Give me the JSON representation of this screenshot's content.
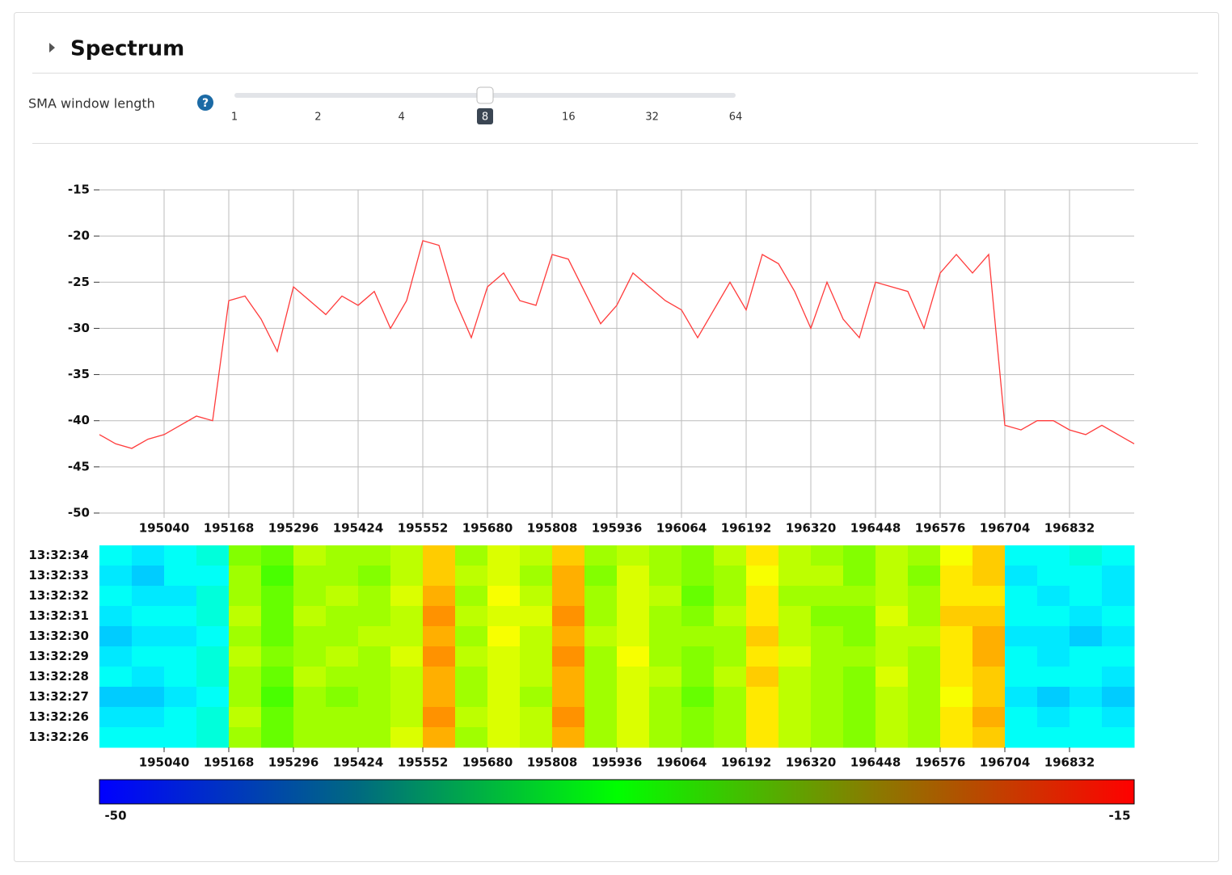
{
  "header": {
    "title": "Spectrum"
  },
  "controls": {
    "sma": {
      "label": "SMA window length",
      "ticks": [
        1,
        2,
        4,
        8,
        16,
        32,
        64
      ],
      "value": 8
    }
  },
  "chart_data": [
    {
      "type": "line",
      "color": "#ff3b3b",
      "grid": true,
      "x": [
        194912,
        194944,
        194976,
        195008,
        195040,
        195072,
        195104,
        195136,
        195168,
        195200,
        195232,
        195264,
        195296,
        195328,
        195360,
        195392,
        195424,
        195456,
        195488,
        195520,
        195552,
        195584,
        195616,
        195648,
        195680,
        195712,
        195744,
        195776,
        195808,
        195840,
        195872,
        195904,
        195936,
        195968,
        196000,
        196032,
        196064,
        196096,
        196128,
        196160,
        196192,
        196224,
        196256,
        196288,
        196320,
        196352,
        196384,
        196416,
        196448,
        196480,
        196512,
        196544,
        196576,
        196608,
        196640,
        196672,
        196704,
        196736,
        196768,
        196800,
        196832,
        196864,
        196896,
        196928,
        196960
      ],
      "values": [
        -41.5,
        -42.5,
        -43,
        -42,
        -41.5,
        -40.5,
        -39.5,
        -40,
        -27,
        -26.5,
        -29,
        -32.5,
        -25.5,
        -27,
        -28.5,
        -26.5,
        -27.5,
        -26,
        -30,
        -27,
        -20.5,
        -21,
        -27,
        -31,
        -25.5,
        -24,
        -27,
        -27.5,
        -22,
        -22.5,
        -26,
        -29.5,
        -27.5,
        -24,
        -25.5,
        -27,
        -28,
        -31,
        -28,
        -25,
        -28,
        -22,
        -23,
        -26,
        -30,
        -25,
        -29,
        -31,
        -25,
        -25.5,
        -26,
        -30,
        -24,
        -22,
        -24,
        -22,
        -40.5,
        -41,
        -40,
        -40,
        -41,
        -41.5,
        -40.5,
        -41.5,
        -42.5
      ],
      "xlim": [
        194912,
        196960
      ],
      "xticks": [
        195040,
        195168,
        195296,
        195424,
        195552,
        195680,
        195808,
        195936,
        196064,
        196192,
        196320,
        196448,
        196576,
        196704,
        196832
      ],
      "ylim": [
        -50,
        -15
      ],
      "yticks": [
        -50,
        -45,
        -40,
        -35,
        -30,
        -25,
        -20,
        -15
      ]
    },
    {
      "type": "heatmap",
      "categories": [
        "13:32:34",
        "13:32:33",
        "13:32:32",
        "13:32:31",
        "13:32:30",
        "13:32:29",
        "13:32:28",
        "13:32:27",
        "13:32:26",
        "13:32:26"
      ],
      "x": [
        194944,
        195008,
        195072,
        195136,
        195200,
        195264,
        195328,
        195392,
        195456,
        195520,
        195584,
        195648,
        195712,
        195776,
        195840,
        195904,
        195968,
        196032,
        196096,
        196160,
        196224,
        196288,
        196352,
        196416,
        196480,
        196544,
        196608,
        196672,
        196736,
        196800,
        196864,
        196928
      ],
      "values": [
        [
          -41,
          -42,
          -41,
          -40,
          -28,
          -29,
          -26,
          -27,
          -27,
          -26,
          -22,
          -27,
          -25,
          -26,
          -22,
          -27,
          -26,
          -27,
          -28,
          -26,
          -23,
          -26,
          -27,
          -28,
          -26,
          -27,
          -24,
          -22,
          -41,
          -41,
          -40,
          -41
        ],
        [
          -42,
          -43,
          -41,
          -41,
          -27,
          -30,
          -27,
          -27,
          -28,
          -26,
          -22,
          -26,
          -25,
          -27,
          -21,
          -28,
          -25,
          -27,
          -28,
          -27,
          -24,
          -26,
          -26,
          -28,
          -26,
          -28,
          -23,
          -22,
          -42,
          -41,
          -41,
          -42
        ],
        [
          -41,
          -42,
          -42,
          -40,
          -27,
          -29,
          -27,
          -26,
          -27,
          -25,
          -21,
          -27,
          -24,
          -26,
          -21,
          -27,
          -25,
          -26,
          -29,
          -27,
          -23,
          -27,
          -27,
          -27,
          -26,
          -27,
          -23,
          -23,
          -41,
          -42,
          -41,
          -42
        ],
        [
          -42,
          -41,
          -41,
          -40,
          -26,
          -29,
          -26,
          -27,
          -27,
          -26,
          -20,
          -26,
          -25,
          -25,
          -20,
          -27,
          -25,
          -27,
          -28,
          -26,
          -23,
          -26,
          -28,
          -28,
          -25,
          -27,
          -22,
          -22,
          -41,
          -41,
          -42,
          -41
        ],
        [
          -43,
          -42,
          -42,
          -41,
          -27,
          -29,
          -27,
          -27,
          -26,
          -26,
          -21,
          -27,
          -24,
          -26,
          -21,
          -26,
          -25,
          -27,
          -27,
          -27,
          -22,
          -26,
          -27,
          -28,
          -26,
          -26,
          -23,
          -21,
          -42,
          -42,
          -43,
          -42
        ],
        [
          -42,
          -41,
          -41,
          -40,
          -26,
          -28,
          -27,
          -26,
          -27,
          -25,
          -20,
          -26,
          -25,
          -26,
          -20,
          -27,
          -24,
          -27,
          -28,
          -27,
          -23,
          -25,
          -27,
          -27,
          -26,
          -27,
          -23,
          -21,
          -41,
          -42,
          -41,
          -41
        ],
        [
          -41,
          -42,
          -41,
          -40,
          -27,
          -29,
          -26,
          -27,
          -27,
          -26,
          -21,
          -27,
          -25,
          -26,
          -21,
          -27,
          -25,
          -26,
          -28,
          -26,
          -22,
          -26,
          -27,
          -28,
          -25,
          -27,
          -23,
          -22,
          -41,
          -41,
          -41,
          -42
        ],
        [
          -43,
          -43,
          -42,
          -41,
          -27,
          -30,
          -27,
          -28,
          -27,
          -26,
          -21,
          -27,
          -25,
          -27,
          -21,
          -27,
          -25,
          -27,
          -29,
          -27,
          -23,
          -26,
          -27,
          -28,
          -26,
          -27,
          -24,
          -22,
          -42,
          -43,
          -42,
          -43
        ],
        [
          -42,
          -42,
          -41,
          -40,
          -26,
          -29,
          -27,
          -27,
          -27,
          -26,
          -20,
          -26,
          -25,
          -26,
          -20,
          -27,
          -25,
          -27,
          -28,
          -27,
          -23,
          -26,
          -27,
          -28,
          -26,
          -27,
          -23,
          -21,
          -41,
          -42,
          -41,
          -42
        ],
        [
          -41,
          -41,
          -41,
          -40,
          -27,
          -29,
          -27,
          -27,
          -27,
          -25,
          -21,
          -27,
          -25,
          -26,
          -21,
          -27,
          -25,
          -27,
          -28,
          -27,
          -23,
          -26,
          -27,
          -28,
          -26,
          -27,
          -23,
          -22,
          -41,
          -41,
          -41,
          -41
        ]
      ],
      "xlim": [
        194912,
        196960
      ],
      "xticks": [
        195040,
        195168,
        195296,
        195424,
        195552,
        195680,
        195808,
        195936,
        196064,
        196192,
        196320,
        196448,
        196576,
        196704,
        196832
      ],
      "clim": [
        -50,
        -15
      ],
      "colorscale": [
        "#0000ff",
        "#00ffff",
        "#00ff00",
        "#ffff00",
        "#ff0000"
      ],
      "colorbar_colors": [
        "#0000ff",
        "#006a80",
        "#00ff00",
        "#8a7a00",
        "#ff0000"
      ]
    }
  ]
}
